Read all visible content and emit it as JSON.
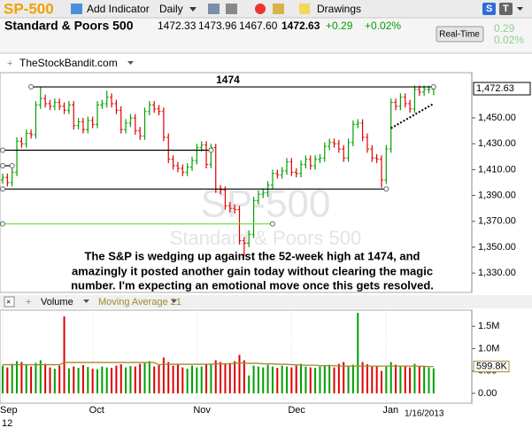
{
  "header": {
    "symbol": "SP-500",
    "add_indicator": "Add Indicator",
    "period": "Daily",
    "drawings": "Drawings",
    "name": "Standard & Poors 500",
    "open": "1472.33",
    "high": "1473.96",
    "low": "1467.60",
    "last": "1472.63",
    "change": "+0.29",
    "change_pct": "+0.02%",
    "realtime": "Real-Time",
    "side_change": "0.29",
    "side_pct": "0.02%",
    "panel_source": "TheStockBandit.com",
    "date": "1/16/2013",
    "annotation": [
      "The S&P is wedging up against the 52-week high at 1474, and",
      "amazingly it posted another gain today without clearing the magic",
      "number.  I'm expecting an emotional move once this gets resolved."
    ]
  },
  "chart_data": [
    {
      "type": "ohlc",
      "up_color": "#00a000",
      "down_color": "#e00000",
      "ylim": [
        1315,
        1485
      ],
      "yticks": [
        {
          "value": 1450,
          "label": "1,450.00"
        },
        {
          "value": 1430,
          "label": "1,430.00"
        },
        {
          "value": 1410,
          "label": "1,410.00"
        },
        {
          "value": 1390,
          "label": "1,390.00"
        },
        {
          "value": 1370,
          "label": "1,370.00"
        },
        {
          "value": 1350,
          "label": "1,350.00"
        },
        {
          "value": 1330,
          "label": "1,330.00"
        }
      ],
      "xticks": [
        {
          "value": 0,
          "label": "Sep"
        },
        {
          "value": 19,
          "label": "Oct"
        },
        {
          "value": 41,
          "label": "Nov"
        },
        {
          "value": 61,
          "label": "Dec"
        },
        {
          "value": 81,
          "label": "Jan"
        }
      ],
      "year_label": "12",
      "open": [
        1402,
        1404,
        1400,
        1408,
        1432,
        1430,
        1438,
        1437,
        1460,
        1465,
        1461,
        1459,
        1462,
        1459,
        1456,
        1460,
        1444,
        1447,
        1441,
        1448,
        1445,
        1460,
        1461,
        1466,
        1461,
        1456,
        1441,
        1446,
        1450,
        1440,
        1436,
        1455,
        1460,
        1457,
        1455,
        1435,
        1418,
        1413,
        1411,
        1408,
        1412,
        1417,
        1427,
        1429,
        1414,
        1427,
        1395,
        1394,
        1382,
        1380,
        1379,
        1355,
        1353,
        1360,
        1386,
        1391,
        1392,
        1398,
        1407,
        1406,
        1409,
        1416,
        1408,
        1407,
        1414,
        1418,
        1413,
        1418,
        1419,
        1428,
        1431,
        1430,
        1426,
        1419,
        1431,
        1445,
        1446,
        1435,
        1426,
        1419,
        1418,
        1402,
        1426,
        1462,
        1459,
        1466,
        1461,
        1457,
        1472,
        1470,
        1472,
        1472.33
      ],
      "high": [
        1407,
        1407,
        1411,
        1435,
        1435,
        1441,
        1441,
        1463,
        1474,
        1468,
        1464,
        1465,
        1465,
        1462,
        1463,
        1463,
        1450,
        1450,
        1451,
        1451,
        1463,
        1464,
        1471,
        1469,
        1464,
        1459,
        1449,
        1453,
        1453,
        1443,
        1458,
        1463,
        1463,
        1460,
        1458,
        1438,
        1421,
        1416,
        1414,
        1415,
        1420,
        1430,
        1432,
        1432,
        1430,
        1430,
        1398,
        1397,
        1385,
        1383,
        1382,
        1358,
        1363,
        1389,
        1394,
        1395,
        1401,
        1410,
        1410,
        1412,
        1419,
        1419,
        1411,
        1417,
        1421,
        1421,
        1421,
        1422,
        1431,
        1434,
        1434,
        1433,
        1429,
        1434,
        1448,
        1449,
        1449,
        1438,
        1429,
        1422,
        1421,
        1429,
        1465,
        1465,
        1469,
        1469,
        1464,
        1475,
        1475,
        1475,
        1475,
        1473.96
      ],
      "low": [
        1399,
        1397,
        1397,
        1405,
        1427,
        1427,
        1434,
        1434,
        1457,
        1458,
        1456,
        1456,
        1456,
        1453,
        1453,
        1441,
        1441,
        1438,
        1438,
        1442,
        1442,
        1457,
        1458,
        1458,
        1453,
        1438,
        1438,
        1443,
        1437,
        1433,
        1433,
        1452,
        1454,
        1452,
        1432,
        1415,
        1410,
        1408,
        1405,
        1405,
        1409,
        1414,
        1424,
        1411,
        1411,
        1392,
        1391,
        1379,
        1377,
        1376,
        1352,
        1343,
        1350,
        1357,
        1383,
        1388,
        1389,
        1395,
        1403,
        1403,
        1406,
        1405,
        1404,
        1404,
        1411,
        1410,
        1410,
        1415,
        1416,
        1425,
        1427,
        1423,
        1416,
        1416,
        1428,
        1442,
        1432,
        1423,
        1416,
        1415,
        1396,
        1399,
        1423,
        1456,
        1456,
        1458,
        1454,
        1454,
        1467,
        1467,
        1469,
        1467.6
      ],
      "close": [
        1404,
        1400,
        1408,
        1432,
        1430,
        1438,
        1437,
        1460,
        1465,
        1461,
        1459,
        1462,
        1459,
        1456,
        1460,
        1444,
        1447,
        1441,
        1448,
        1445,
        1460,
        1461,
        1466,
        1461,
        1456,
        1441,
        1446,
        1450,
        1440,
        1436,
        1455,
        1460,
        1457,
        1455,
        1435,
        1418,
        1413,
        1411,
        1408,
        1412,
        1417,
        1427,
        1429,
        1414,
        1427,
        1395,
        1394,
        1382,
        1380,
        1379,
        1355,
        1353,
        1360,
        1386,
        1391,
        1392,
        1398,
        1407,
        1406,
        1409,
        1416,
        1408,
        1407,
        1414,
        1418,
        1413,
        1418,
        1419,
        1428,
        1431,
        1430,
        1426,
        1419,
        1431,
        1445,
        1446,
        1435,
        1426,
        1419,
        1418,
        1402,
        1426,
        1462,
        1459,
        1466,
        1461,
        1457,
        1472,
        1470,
        1472,
        1472,
        1472.63
      ],
      "last_close_label": "1,472.63",
      "levels": [
        {
          "value": 1474,
          "start": 6,
          "end": 91,
          "color": "#000000",
          "label": "1474"
        },
        {
          "value": 1425,
          "start": 0,
          "end": 44,
          "color": "#000000"
        },
        {
          "value": 1413,
          "start": 0,
          "end": 2,
          "color": "#000000"
        },
        {
          "value": 1395,
          "start": 0,
          "end": 81,
          "color": "#000000"
        },
        {
          "value": 1368,
          "start": 0,
          "end": 57,
          "color": "#66dd33"
        }
      ],
      "trendline": {
        "x": [
          82,
          91
        ],
        "values": [
          1442,
          1461
        ],
        "color": "#000000"
      },
      "watermark": "SP-500"
    },
    {
      "type": "bar",
      "title": "Volume",
      "color_source": "price",
      "ylim": [
        -0.22,
        1.86
      ],
      "yticks": [
        {
          "value": 1.5,
          "label": "1.5M"
        },
        {
          "value": 1.0,
          "label": "1.0M"
        },
        {
          "value": 0.5,
          "label": "0.50"
        },
        {
          "value": 0,
          "label": "0.00"
        }
      ],
      "values": [
        0.62,
        0.58,
        0.66,
        0.72,
        0.7,
        0.64,
        0.6,
        0.68,
        0.74,
        0.66,
        0.58,
        0.55,
        0.62,
        1.72,
        0.56,
        0.6,
        0.57,
        0.63,
        0.59,
        0.55,
        0.54,
        0.6,
        0.58,
        0.57,
        0.62,
        0.65,
        0.58,
        0.61,
        0.6,
        0.66,
        0.68,
        0.72,
        0.6,
        0.64,
        0.8,
        0.7,
        0.62,
        0.66,
        0.58,
        0.55,
        0.62,
        0.58,
        0.6,
        0.66,
        0.64,
        0.74,
        0.7,
        0.65,
        0.68,
        0.72,
        0.86,
        0.74,
        0.4,
        0.62,
        0.6,
        0.58,
        0.64,
        0.6,
        0.57,
        0.62,
        0.6,
        0.58,
        0.62,
        0.66,
        0.6,
        0.58,
        0.57,
        0.6,
        0.62,
        0.64,
        0.58,
        0.66,
        0.7,
        0.62,
        0.64,
        1.8,
        0.7,
        0.65,
        0.6,
        0.62,
        0.5,
        0.62,
        0.7,
        0.64,
        0.6,
        0.62,
        0.58,
        0.66,
        0.6,
        0.62,
        0.58,
        0.56
      ],
      "ma": {
        "name": "Moving Average 21",
        "color": "#a08830",
        "values": [
          0.64,
          0.64,
          0.64,
          0.64,
          0.64,
          0.64,
          0.64,
          0.64,
          0.64,
          0.64,
          0.64,
          0.64,
          0.64,
          0.69,
          0.69,
          0.69,
          0.69,
          0.69,
          0.69,
          0.69,
          0.69,
          0.69,
          0.69,
          0.69,
          0.69,
          0.69,
          0.69,
          0.69,
          0.69,
          0.69,
          0.69,
          0.69,
          0.69,
          0.64,
          0.65,
          0.65,
          0.65,
          0.65,
          0.65,
          0.65,
          0.65,
          0.65,
          0.65,
          0.65,
          0.65,
          0.66,
          0.66,
          0.66,
          0.66,
          0.67,
          0.68,
          0.68,
          0.67,
          0.67,
          0.67,
          0.66,
          0.66,
          0.66,
          0.65,
          0.65,
          0.65,
          0.64,
          0.64,
          0.63,
          0.63,
          0.63,
          0.63,
          0.62,
          0.62,
          0.62,
          0.62,
          0.61,
          0.61,
          0.61,
          0.61,
          0.61,
          0.61,
          0.61,
          0.61,
          0.61,
          0.61,
          0.61,
          0.61,
          0.61,
          0.61,
          0.61,
          0.61,
          0.61,
          0.61,
          0.6,
          0.6,
          0.5998
        ],
        "last_label": "599.8K"
      }
    }
  ]
}
